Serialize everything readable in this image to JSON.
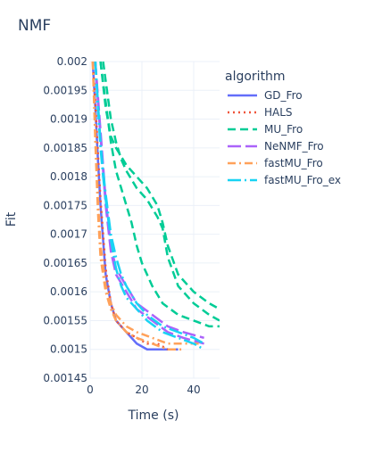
{
  "chart_data": {
    "type": "line",
    "title": "NMF",
    "xlabel": "Time (s)",
    "ylabel": "Fit",
    "xlim": [
      0,
      50
    ],
    "ylim": [
      0.00145,
      0.002
    ],
    "x_ticks": [
      "0",
      "20",
      "40"
    ],
    "y_ticks": [
      "0.002",
      "0.00195",
      "0.0019",
      "0.00185",
      "0.0018",
      "0.00175",
      "0.0017",
      "0.00165",
      "0.0016",
      "0.00155",
      "0.0015",
      "0.00145"
    ],
    "grid": true,
    "legend_title": "algorithm",
    "legend_position": "right",
    "series": [
      {
        "name": "GD_Fro",
        "color": "#636efa",
        "dash": "solid",
        "curves": [
          [
            [
              1,
              0.002
            ],
            [
              2,
              0.00192
            ],
            [
              3,
              0.00183
            ],
            [
              4,
              0.00175
            ],
            [
              6,
              0.00163
            ],
            [
              8,
              0.00158
            ],
            [
              10,
              0.00155
            ],
            [
              14,
              0.00153
            ],
            [
              18,
              0.00151
            ],
            [
              22,
              0.0015
            ],
            [
              26,
              0.0015
            ],
            [
              30,
              0.0015
            ],
            [
              34,
              0.0015
            ]
          ]
        ]
      },
      {
        "name": "HALS",
        "color": "#ef553b",
        "dash": "dot",
        "curves": [
          [
            [
              1,
              0.002
            ],
            [
              2,
              0.00193
            ],
            [
              3,
              0.00184
            ],
            [
              4,
              0.00176
            ],
            [
              6,
              0.00164
            ],
            [
              8,
              0.00158
            ],
            [
              10,
              0.00155
            ],
            [
              14,
              0.00153
            ],
            [
              18,
              0.00152
            ],
            [
              22,
              0.00151
            ],
            [
              26,
              0.00151
            ],
            [
              30,
              0.0015
            ]
          ]
        ]
      },
      {
        "name": "MU_Fro",
        "color": "#00cc96",
        "dash": "dash",
        "curves": [
          [
            [
              4,
              0.002
            ],
            [
              6,
              0.00192
            ],
            [
              8,
              0.00187
            ],
            [
              10,
              0.00185
            ],
            [
              14,
              0.00182
            ],
            [
              18,
              0.0018
            ],
            [
              22,
              0.00178
            ],
            [
              26,
              0.00175
            ],
            [
              28,
              0.00172
            ],
            [
              30,
              0.00168
            ],
            [
              34,
              0.00163
            ],
            [
              40,
              0.0016
            ],
            [
              46,
              0.00158
            ],
            [
              50,
              0.00157
            ]
          ],
          [
            [
              5,
              0.002
            ],
            [
              8,
              0.0019
            ],
            [
              10,
              0.00186
            ],
            [
              12,
              0.00183
            ],
            [
              14,
              0.00181
            ],
            [
              18,
              0.00178
            ],
            [
              22,
              0.00176
            ],
            [
              26,
              0.00173
            ],
            [
              28,
              0.00171
            ],
            [
              30,
              0.00166
            ],
            [
              34,
              0.00161
            ],
            [
              40,
              0.00158
            ],
            [
              46,
              0.00156
            ],
            [
              50,
              0.00155
            ]
          ],
          [
            [
              4,
              0.002
            ],
            [
              6,
              0.00193
            ],
            [
              8,
              0.00186
            ],
            [
              10,
              0.00181
            ],
            [
              12,
              0.00178
            ],
            [
              14,
              0.00175
            ],
            [
              16,
              0.00172
            ],
            [
              18,
              0.00168
            ],
            [
              20,
              0.00165
            ],
            [
              24,
              0.00161
            ],
            [
              28,
              0.00158
            ],
            [
              34,
              0.00156
            ],
            [
              40,
              0.00155
            ],
            [
              46,
              0.00154
            ],
            [
              50,
              0.00154
            ]
          ]
        ]
      },
      {
        "name": "NeNMF_Fro",
        "color": "#ab63fa",
        "dash": "longdash",
        "curves": [
          [
            [
              2,
              0.002
            ],
            [
              3,
              0.00194
            ],
            [
              4,
              0.00188
            ],
            [
              5,
              0.00182
            ],
            [
              6,
              0.00176
            ],
            [
              8,
              0.00168
            ],
            [
              10,
              0.00164
            ],
            [
              14,
              0.00161
            ],
            [
              18,
              0.00158
            ],
            [
              24,
              0.00156
            ],
            [
              30,
              0.00154
            ],
            [
              36,
              0.00153
            ],
            [
              44,
              0.00152
            ]
          ],
          [
            [
              2,
              0.002
            ],
            [
              3,
              0.00193
            ],
            [
              4,
              0.00187
            ],
            [
              5,
              0.00181
            ],
            [
              6,
              0.00175
            ],
            [
              8,
              0.00167
            ],
            [
              10,
              0.00163
            ],
            [
              14,
              0.0016
            ],
            [
              18,
              0.00157
            ],
            [
              24,
              0.00155
            ],
            [
              30,
              0.00153
            ],
            [
              36,
              0.00152
            ],
            [
              44,
              0.00151
            ]
          ]
        ]
      },
      {
        "name": "fastMU_Fro",
        "color": "#ffa15a",
        "dash": "dashdot",
        "curves": [
          [
            [
              1,
              0.002
            ],
            [
              2,
              0.00188
            ],
            [
              3,
              0.00176
            ],
            [
              4,
              0.00168
            ],
            [
              6,
              0.00161
            ],
            [
              8,
              0.00158
            ],
            [
              10,
              0.00156
            ],
            [
              14,
              0.00154
            ],
            [
              18,
              0.00153
            ],
            [
              24,
              0.00152
            ],
            [
              30,
              0.00151
            ],
            [
              36,
              0.00151
            ],
            [
              42,
              0.00151
            ]
          ],
          [
            [
              1,
              0.002
            ],
            [
              2,
              0.00186
            ],
            [
              3,
              0.00174
            ],
            [
              4,
              0.00166
            ],
            [
              6,
              0.0016
            ],
            [
              8,
              0.00157
            ],
            [
              10,
              0.00155
            ],
            [
              14,
              0.00153
            ],
            [
              18,
              0.00152
            ],
            [
              24,
              0.00151
            ],
            [
              30,
              0.0015
            ],
            [
              36,
              0.0015
            ]
          ]
        ]
      },
      {
        "name": "fastMU_Fro_ex",
        "color": "#19d3f3",
        "dash": "longdashdot",
        "curves": [
          [
            [
              2,
              0.002
            ],
            [
              3,
              0.00193
            ],
            [
              4,
              0.00186
            ],
            [
              5,
              0.00181
            ],
            [
              6,
              0.00177
            ],
            [
              8,
              0.0017
            ],
            [
              10,
              0.00166
            ],
            [
              12,
              0.00163
            ],
            [
              14,
              0.00161
            ],
            [
              18,
              0.00158
            ],
            [
              22,
              0.00156
            ],
            [
              28,
              0.00154
            ],
            [
              34,
              0.00153
            ],
            [
              40,
              0.00152
            ],
            [
              44,
              0.00151
            ]
          ],
          [
            [
              2,
              0.002
            ],
            [
              3,
              0.00192
            ],
            [
              4,
              0.00185
            ],
            [
              5,
              0.0018
            ],
            [
              6,
              0.00176
            ],
            [
              8,
              0.00169
            ],
            [
              10,
              0.00164
            ],
            [
              12,
              0.00161
            ],
            [
              14,
              0.00159
            ],
            [
              18,
              0.00157
            ],
            [
              22,
              0.00155
            ],
            [
              28,
              0.00153
            ],
            [
              34,
              0.00152
            ],
            [
              40,
              0.00151
            ],
            [
              44,
              0.0015
            ]
          ]
        ]
      }
    ]
  }
}
